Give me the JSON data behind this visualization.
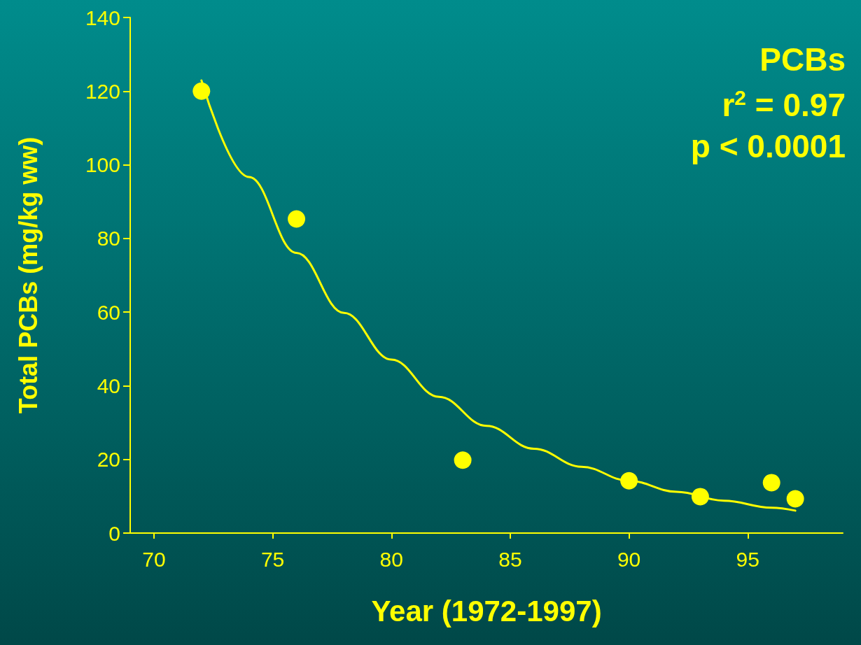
{
  "chart_data": {
    "type": "scatter",
    "xlabel": "Year (1972-1997)",
    "ylabel": "Total PCBs (mg/kg ww)",
    "annotations": [
      "PCBs",
      "r$^{2}$ = 0.97",
      "p < 0.0001"
    ],
    "xlim": [
      69,
      99
    ],
    "xticks": [
      70,
      75,
      80,
      85,
      90,
      95
    ],
    "ylim": [
      0,
      140
    ],
    "yticks": [
      0,
      20,
      40,
      60,
      80,
      100,
      120,
      140
    ],
    "grid": false,
    "marker": "circle",
    "series": [
      {
        "color": "#ffff00",
        "x": [
          72,
          76,
          83,
          90,
          93,
          96,
          97
        ],
        "values": [
          120,
          85.3,
          19.8,
          14.2,
          9.9,
          13.7,
          9.3
        ]
      },
      {
        "type": "line",
        "color": "#ffff00",
        "marker": "none",
        "line_style": "solid",
        "x": [
          72,
          74,
          76,
          78,
          80,
          82,
          84,
          86,
          88,
          90,
          92,
          94,
          96,
          97
        ],
        "values": [
          122.9,
          96.7,
          76.1,
          59.8,
          47.1,
          37.0,
          29.1,
          22.9,
          18.0,
          14.2,
          11.2,
          8.8,
          6.9,
          6.1
        ]
      }
    ]
  }
}
